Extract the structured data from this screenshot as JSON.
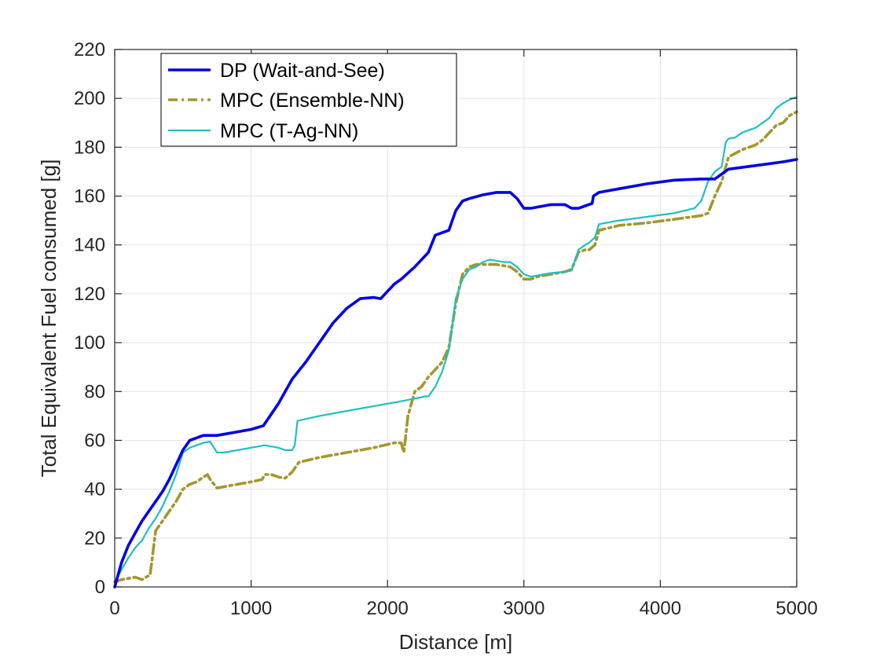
{
  "chart_data": {
    "type": "line",
    "xlabel": "Distance [m]",
    "ylabel": "Total Equivalent Fuel consumed [g]",
    "xlim": [
      0,
      5000
    ],
    "ylim": [
      0,
      220
    ],
    "xticks": [
      0,
      1000,
      2000,
      3000,
      4000,
      5000
    ],
    "yticks": [
      0,
      20,
      40,
      60,
      80,
      100,
      120,
      140,
      160,
      180,
      200,
      220
    ],
    "xtick_labels": [
      "0",
      "1000",
      "2000",
      "3000",
      "4000",
      "5000"
    ],
    "ytick_labels": [
      "0",
      "20",
      "40",
      "60",
      "80",
      "100",
      "120",
      "140",
      "160",
      "180",
      "200",
      "220"
    ],
    "grid": true,
    "legend_position": "top-left",
    "series": [
      {
        "name": "DP (Wait-and-See)",
        "color": "#0000e6",
        "style": "solid",
        "x": [
          0,
          50,
          100,
          150,
          200,
          250,
          300,
          350,
          400,
          450,
          500,
          550,
          600,
          650,
          700,
          750,
          800,
          900,
          1000,
          1090,
          1200,
          1300,
          1400,
          1500,
          1600,
          1700,
          1800,
          1900,
          1950,
          2000,
          2050,
          2100,
          2200,
          2300,
          2350,
          2400,
          2450,
          2500,
          2550,
          2600,
          2700,
          2800,
          2900,
          2950,
          3000,
          3050,
          3100,
          3200,
          3300,
          3350,
          3400,
          3450,
          3500,
          3510,
          3550,
          3700,
          3900,
          4100,
          4300,
          4400,
          4500,
          4700,
          4900,
          5000
        ],
        "y": [
          0,
          10,
          17,
          22,
          27,
          31,
          35,
          39,
          44,
          50,
          56,
          60,
          61,
          62,
          62,
          62,
          62.5,
          63.5,
          64.5,
          66,
          75,
          85,
          92,
          100,
          108,
          114,
          118,
          118.5,
          118,
          121,
          124,
          126,
          131,
          137,
          144,
          145,
          146,
          154,
          158,
          159,
          160.5,
          161.5,
          161.5,
          159,
          155,
          155,
          155.5,
          156.5,
          156.5,
          155,
          155,
          156,
          157,
          160,
          161.5,
          163,
          165,
          166.5,
          167,
          167,
          171,
          172.5,
          174,
          175
        ]
      },
      {
        "name": "MPC (Ensemble-NN)",
        "color": "#a3972f",
        "style": "dashdot",
        "x": [
          0,
          50,
          100,
          150,
          200,
          230,
          260,
          300,
          350,
          400,
          450,
          500,
          550,
          600,
          650,
          680,
          700,
          750,
          800,
          900,
          1000,
          1080,
          1100,
          1150,
          1200,
          1250,
          1300,
          1350,
          1500,
          1700,
          1900,
          2050,
          2100,
          2120,
          2150,
          2200,
          2250,
          2300,
          2350,
          2400,
          2450,
          2500,
          2550,
          2600,
          2650,
          2700,
          2800,
          2900,
          2950,
          3000,
          3050,
          3100,
          3200,
          3300,
          3350,
          3400,
          3450,
          3480,
          3520,
          3550,
          3700,
          3900,
          4100,
          4300,
          4350,
          4400,
          4450,
          4500,
          4600,
          4700,
          4750,
          4800,
          4850,
          4900,
          4950,
          5000
        ],
        "y": [
          2,
          3,
          3.5,
          4,
          3,
          4,
          5,
          23,
          27,
          31,
          35,
          40,
          42,
          43,
          45,
          46,
          44,
          40.5,
          41,
          42,
          43,
          44,
          46,
          46,
          45,
          44.5,
          47,
          51,
          53,
          55,
          57,
          59,
          59,
          55,
          70,
          80,
          82,
          86,
          89,
          92,
          98,
          116,
          128,
          131,
          132,
          132,
          132,
          131,
          129,
          126,
          126,
          127,
          128,
          129,
          130,
          137,
          138,
          138,
          140,
          146,
          148,
          149,
          150.5,
          152,
          153,
          160,
          166,
          176,
          179,
          181,
          183,
          186,
          189,
          190,
          193,
          194.5
        ]
      },
      {
        "name": "MPC (T-Ag-NN)",
        "color": "#1fbfbf",
        "style": "solid",
        "x": [
          0,
          30,
          60,
          100,
          150,
          200,
          250,
          300,
          350,
          400,
          450,
          500,
          550,
          600,
          650,
          700,
          750,
          800,
          900,
          1000,
          1100,
          1200,
          1250,
          1300,
          1320,
          1340,
          1500,
          1700,
          1900,
          2100,
          2280,
          2300,
          2350,
          2400,
          2450,
          2500,
          2550,
          2600,
          2650,
          2700,
          2750,
          2800,
          2850,
          2900,
          2950,
          3000,
          3050,
          3100,
          3200,
          3300,
          3350,
          3400,
          3450,
          3480,
          3520,
          3550,
          3700,
          3900,
          4100,
          4250,
          4300,
          4350,
          4400,
          4450,
          4480,
          4500,
          4550,
          4600,
          4700,
          4750,
          4800,
          4850,
          4900,
          4950,
          5000
        ],
        "y": [
          0,
          5,
          8,
          12,
          16,
          19,
          24,
          28,
          33,
          39,
          46,
          55,
          57,
          58,
          59,
          59.5,
          55,
          55,
          56,
          57,
          58,
          57,
          56,
          56,
          58,
          68,
          70,
          72,
          74,
          76,
          78,
          78,
          82,
          88,
          97,
          118,
          126,
          130,
          131,
          133,
          134,
          133.5,
          133,
          133,
          131,
          128,
          127,
          127.5,
          128.5,
          129,
          129.5,
          138,
          140,
          141,
          143,
          148.5,
          150,
          151.5,
          153,
          155,
          158,
          166,
          170,
          172,
          182,
          183.5,
          184,
          186,
          188,
          190,
          192,
          196,
          198,
          199.5,
          200.5
        ]
      }
    ]
  }
}
